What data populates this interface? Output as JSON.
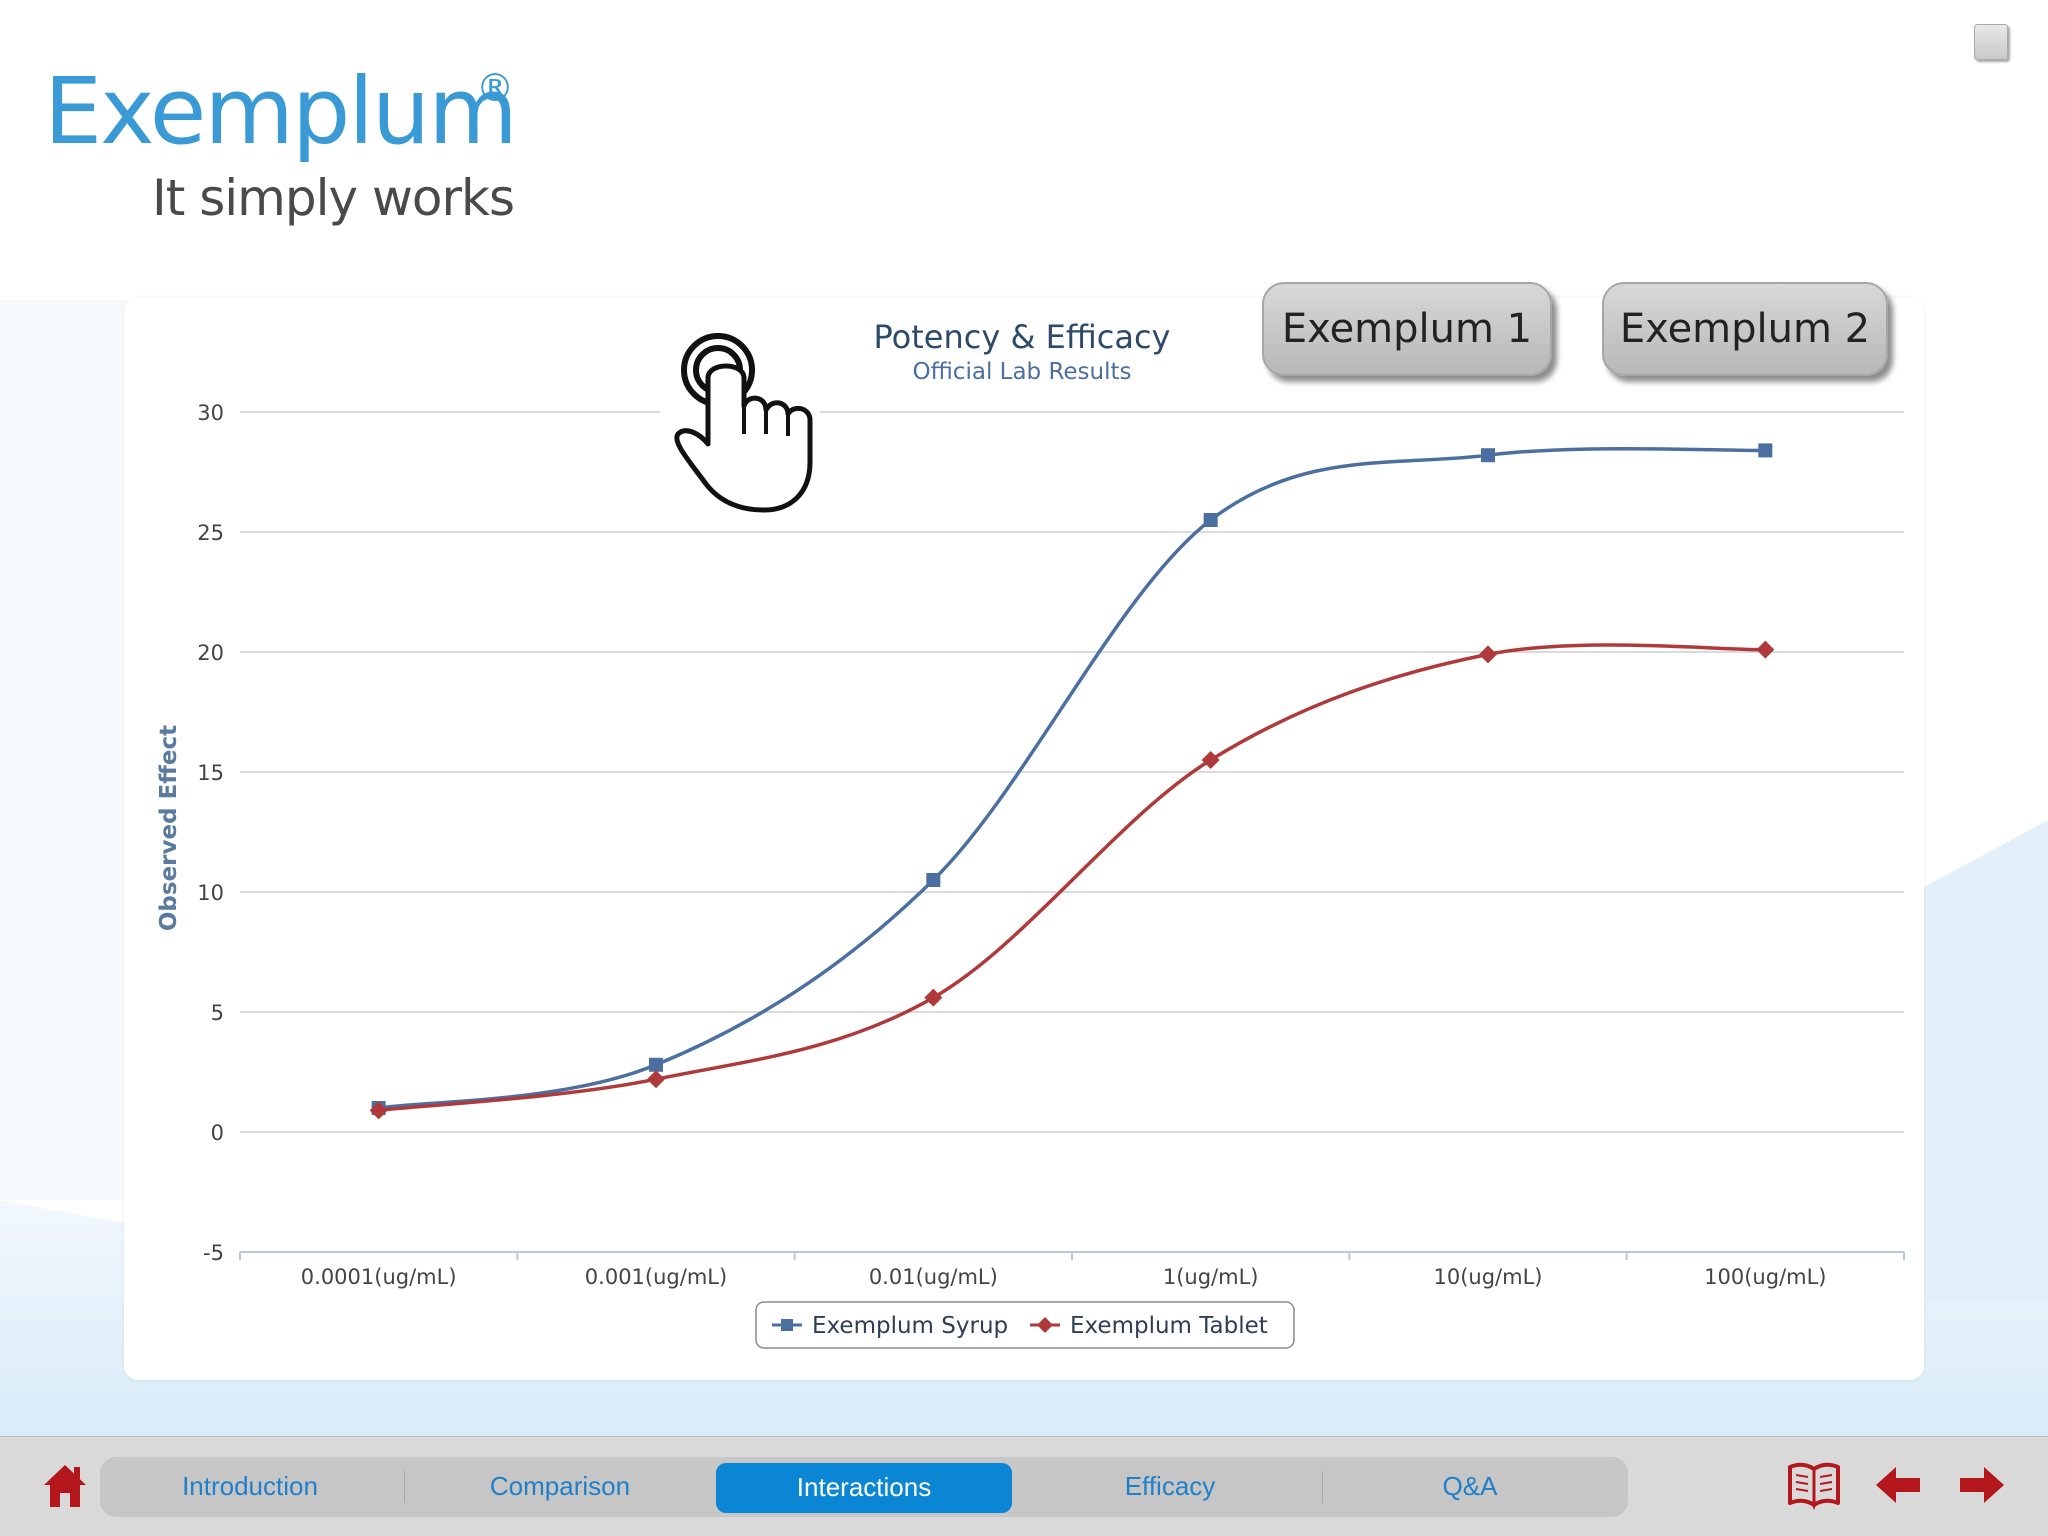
{
  "brand": {
    "name": "Exemplum",
    "registered": "®",
    "tagline": "It simply works",
    "color": "#3a9ad6"
  },
  "buttons": {
    "exemplum1": "Exemplum 1",
    "exemplum2": "Exemplum 2"
  },
  "icons": {
    "tap_hint": "hand-tap-icon",
    "home": "home-icon",
    "book": "book-icon",
    "back": "arrow-left-icon",
    "forward": "arrow-right-icon",
    "window": "square-icon"
  },
  "nav": {
    "tabs": [
      "Introduction",
      "Comparison",
      "Interactions",
      "Efficacy",
      "Q&A"
    ],
    "active": "Interactions",
    "active_color": "#0a86d4",
    "icon_color": "#b3161b"
  },
  "chart_data": {
    "type": "line",
    "title": "Potency & Efficacy",
    "subtitle": "Official Lab Results",
    "ylabel": "Observed Effect",
    "xlabel": "",
    "categories": [
      "0.0001(ug/mL)",
      "0.001(ug/mL)",
      "0.01(ug/mL)",
      "1(ug/mL)",
      "10(ug/mL)",
      "100(ug/mL)"
    ],
    "ylim": [
      -5,
      30
    ],
    "yticks": [
      "30",
      "25",
      "20",
      "15",
      "10",
      "5",
      "0",
      "-5"
    ],
    "grid": true,
    "legend_position": "bottom",
    "series": [
      {
        "name": "Exemplum Syrup",
        "values": [
          1.0,
          2.8,
          10.5,
          25.5,
          28.2,
          28.4
        ],
        "color": "#4a6fa0",
        "marker": "square"
      },
      {
        "name": "Exemplum Tablet",
        "values": [
          0.9,
          2.2,
          5.6,
          15.5,
          19.9,
          20.1
        ],
        "color": "#b0393b",
        "marker": "diamond"
      }
    ]
  }
}
